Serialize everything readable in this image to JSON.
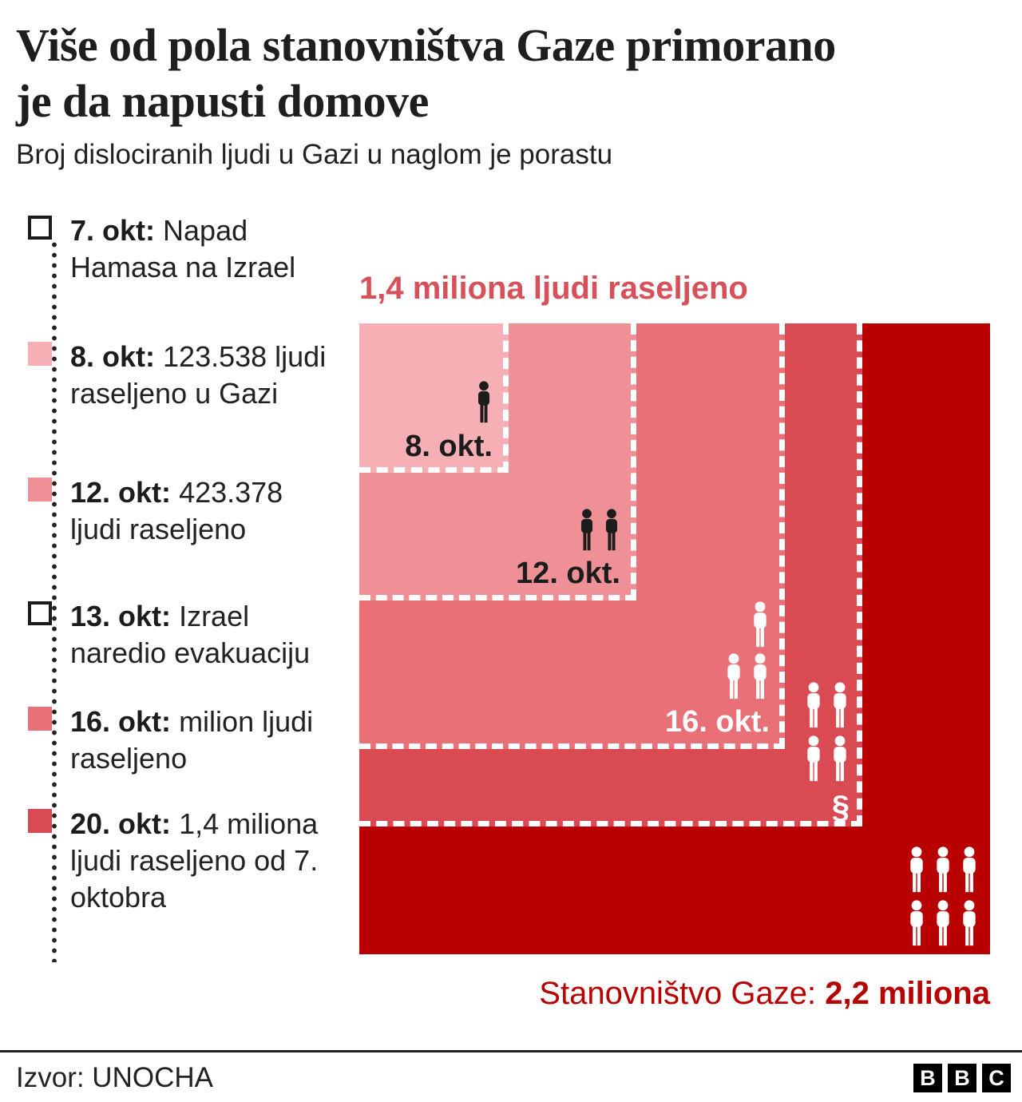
{
  "header": {
    "title_lines": [
      "Više od pola stanovništva Gaze primorano",
      "je da napusti domove"
    ],
    "subtitle": "Broj dislociranih ljudi u Gazi u naglom je porastu"
  },
  "timeline": {
    "items": [
      {
        "date": "7. okt:",
        "text": "Napad Hamasa na Izrael",
        "marker": "outline",
        "color": "#ffffff"
      },
      {
        "date": "8. okt:",
        "text": "123.538 ljudi raseljeno u Gazi",
        "marker": "filled",
        "color": "#f5afb5"
      },
      {
        "date": "12. okt:",
        "text": "423.378 ljudi raseljeno",
        "marker": "filled",
        "color": "#ee9096"
      },
      {
        "date": "13. okt:",
        "text": "Izrael naredio evakuaciju",
        "marker": "outline",
        "color": "#ffffff"
      },
      {
        "date": "16. okt:",
        "text": "milion ljudi raseljeno",
        "marker": "filled",
        "color": "#e97077"
      },
      {
        "date": "20. okt:",
        "text": "1,4 miliona ljudi raseljeno od 7. oktobra",
        "marker": "filled",
        "color": "#d94a52"
      }
    ]
  },
  "chart": {
    "annotation": "1,4 miliona ljudi raseljeno",
    "annotation_color": "#d6515a",
    "labels": {
      "s8": "8. okt.",
      "s12": "12. okt.",
      "s16": "16. okt.",
      "s20_symbol": "§"
    },
    "caption_prefix": "Stanovništvo Gaze: ",
    "caption_value": "2,2 miliona",
    "caption_color": "#b80000"
  },
  "chart_data": {
    "type": "area",
    "subtype": "nested-proportional-squares",
    "title": "1,4 miliona ljudi raseljeno",
    "caption": "Stanovništvo Gaze: 2,2 miliona",
    "unit": "ljudi",
    "total_label": "Stanovništvo Gaze",
    "total_value": 2200000,
    "series": [
      {
        "name": "8. okt.",
        "value": 123538,
        "color": "#f5afb5",
        "icon_count": 1,
        "icon_color": "#1c1c1c"
      },
      {
        "name": "12. okt.",
        "value": 423378,
        "color": "#ee9096",
        "icon_count": 2,
        "icon_color": "#1c1c1c"
      },
      {
        "name": "16. okt.",
        "value": 1000000,
        "color": "#e97077",
        "icon_count": 3,
        "icon_color": "#ffffff"
      },
      {
        "name": "20. okt.",
        "value": 1400000,
        "color": "#d94a52",
        "icon_count": 4,
        "icon_color": "#ffffff"
      },
      {
        "name": "Stanovništvo Gaze",
        "value": 2200000,
        "color": "#b80000",
        "icon_count": 6,
        "icon_color": "#ffffff"
      }
    ]
  },
  "footer": {
    "source": "Izvor: UNOCHA",
    "logo_letters": [
      "B",
      "B",
      "C"
    ]
  }
}
